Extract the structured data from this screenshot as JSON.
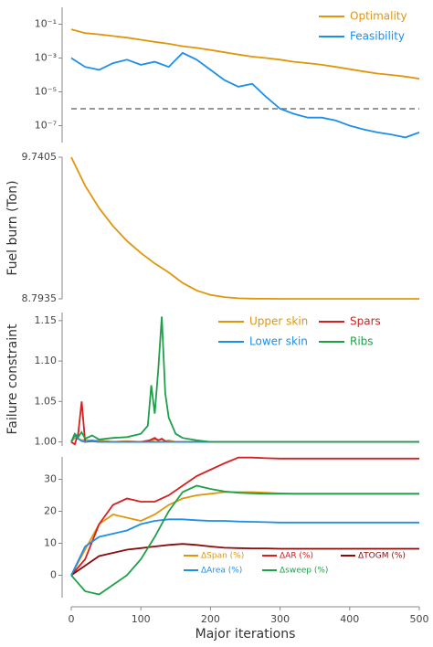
{
  "chart_data": [
    {
      "type": "line",
      "log_y": true,
      "legend": "upper right",
      "x": [
        0,
        20,
        40,
        60,
        80,
        100,
        120,
        140,
        160,
        180,
        200,
        220,
        240,
        260,
        280,
        300,
        320,
        340,
        360,
        380,
        400,
        420,
        440,
        460,
        480,
        500
      ],
      "xlim": [
        0,
        500
      ],
      "ylim": [
        1e-08,
        1
      ],
      "yticks": [
        {
          "value": 0.1,
          "label": "10⁻¹"
        },
        {
          "value": 0.001,
          "label": "10⁻³"
        },
        {
          "value": 1e-05,
          "label": "10⁻⁵"
        },
        {
          "value": 1e-07,
          "label": "10⁻⁷"
        }
      ],
      "hline": 1e-06,
      "series": [
        {
          "name": "Optimality",
          "color": "#e0960c",
          "values": [
            0.05,
            0.03,
            0.025,
            0.02,
            0.016,
            0.012,
            0.009,
            0.007,
            0.005,
            0.004,
            0.003,
            0.0022,
            0.0016,
            0.0012,
            0.001,
            0.0008,
            0.0006,
            0.0005,
            0.0004,
            0.0003,
            0.00022,
            0.00016,
            0.00012,
            0.0001,
            8e-05,
            6e-05
          ]
        },
        {
          "name": "Feasibility",
          "color": "#1e8fe6",
          "values": [
            0.001,
            0.0003,
            0.0002,
            0.0005,
            0.0008,
            0.0004,
            0.0006,
            0.0003,
            0.002,
            0.0008,
            0.0002,
            5e-05,
            2e-05,
            3e-05,
            5e-06,
            1e-06,
            5e-07,
            3e-07,
            3e-07,
            2e-07,
            1e-07,
            6e-08,
            4e-08,
            3e-08,
            2e-08,
            4e-08
          ]
        }
      ]
    },
    {
      "type": "line",
      "ylabel": "Fuel burn (Ton)",
      "x": [
        0,
        20,
        40,
        60,
        80,
        100,
        120,
        140,
        160,
        180,
        200,
        220,
        240,
        260,
        280,
        300,
        320,
        340,
        360,
        380,
        400,
        420,
        440,
        460,
        480,
        500
      ],
      "xlim": [
        0,
        500
      ],
      "ylim": [
        8.7935,
        9.7405
      ],
      "yticks": [
        9.7405,
        8.7935
      ],
      "series": [
        {
          "name": null,
          "color": "#e0960c",
          "values": [
            9.7405,
            9.55,
            9.4,
            9.28,
            9.18,
            9.1,
            9.03,
            8.97,
            8.9,
            8.85,
            8.82,
            8.805,
            8.797,
            8.795,
            8.794,
            8.7935,
            8.7935,
            8.7935,
            8.7935,
            8.7935,
            8.7935,
            8.7935,
            8.7935,
            8.7935,
            8.7935,
            8.7935
          ]
        }
      ]
    },
    {
      "type": "line",
      "ylabel": "Failure constraint",
      "legend": "upper right",
      "x": [
        0,
        5,
        10,
        15,
        20,
        30,
        40,
        60,
        80,
        100,
        110,
        115,
        120,
        125,
        130,
        135,
        140,
        150,
        160,
        180,
        200,
        250,
        300,
        400,
        500
      ],
      "xlim": [
        0,
        500
      ],
      "ylim": [
        0.995,
        1.16
      ],
      "yticks": [
        {
          "value": 1,
          "label": "1.00"
        },
        1.05,
        {
          "value": 1.1,
          "label": "1.10"
        },
        1.15
      ],
      "series": [
        {
          "name": "Upper skin",
          "color": "#e0960c",
          "values": [
            1,
            1.005,
            1.004,
            1.002,
            1.003,
            1.001,
            1.002,
            1,
            1.001,
            1,
            1.002,
            1.001,
            1.003,
            1.002,
            1.003,
            1.001,
            1.002,
            1,
            1,
            1,
            1,
            1,
            1,
            1,
            1
          ]
        },
        {
          "name": "Spars",
          "color": "#d42020",
          "values": [
            1,
            0.997,
            1.01,
            1.05,
            1.0,
            1.001,
            1,
            1,
            1,
            1,
            1.001,
            1.003,
            1.005,
            1.002,
            1.004,
            1.001,
            1,
            1,
            1,
            1,
            1,
            1,
            1,
            1,
            1
          ]
        },
        {
          "name": "Lower skin",
          "color": "#1e8fe6",
          "values": [
            1,
            1.008,
            1.004,
            1.001,
            1,
            1.002,
            1,
            1,
            1,
            1,
            1,
            1,
            1,
            1,
            1,
            1,
            1,
            1,
            1,
            1,
            1,
            1,
            1,
            1,
            1
          ]
        },
        {
          "name": "Ribs",
          "color": "#1ea04a",
          "values": [
            1,
            1.01,
            1.006,
            1.012,
            1.004,
            1.008,
            1.003,
            1.005,
            1.006,
            1.01,
            1.02,
            1.07,
            1.035,
            1.09,
            1.155,
            1.06,
            1.03,
            1.01,
            1.005,
            1.002,
            1,
            1,
            1,
            1,
            1
          ]
        }
      ]
    },
    {
      "type": "line",
      "legend": "lower right",
      "xlabel": "Major iterations",
      "x": [
        0,
        20,
        40,
        60,
        80,
        100,
        120,
        140,
        160,
        180,
        200,
        220,
        240,
        260,
        280,
        300,
        320,
        340,
        360,
        380,
        400,
        420,
        440,
        460,
        480,
        500
      ],
      "xlim": [
        0,
        500
      ],
      "ylim": [
        -7,
        37
      ],
      "yticks": [
        0,
        10,
        20,
        30
      ],
      "xticks": [
        0,
        100,
        200,
        300,
        400,
        500
      ],
      "series": [
        {
          "name": "ΔSpan (%)",
          "color": "#e0960c",
          "values": [
            0,
            8,
            16,
            19,
            18,
            17,
            19,
            22,
            24,
            25,
            25.5,
            26,
            26,
            26,
            25.8,
            25.6,
            25.5,
            25.5,
            25.5,
            25.5,
            25.5,
            25.5,
            25.5,
            25.5,
            25.5,
            25.5
          ]
        },
        {
          "name": "ΔAR (%)",
          "color": "#d42020",
          "values": [
            0,
            5,
            16,
            22,
            24,
            23,
            23,
            25,
            28,
            31,
            33,
            35,
            36.8,
            36.8,
            36.6,
            36.5,
            36.5,
            36.5,
            36.5,
            36.5,
            36.5,
            36.5,
            36.5,
            36.5,
            36.5,
            36.5
          ]
        },
        {
          "name": "ΔTOGM (%)",
          "color": "#8b0a0a",
          "values": [
            0,
            3,
            6,
            7,
            8,
            8.5,
            9,
            9.5,
            9.8,
            9.5,
            9,
            8.6,
            8.5,
            8.4,
            8.4,
            8.3,
            8.3,
            8.3,
            8.3,
            8.3,
            8.3,
            8.3,
            8.3,
            8.3,
            8.3,
            8.3
          ]
        },
        {
          "name": "ΔArea (%)",
          "color": "#1e8fe6",
          "values": [
            0,
            9,
            12,
            13,
            14,
            16,
            17,
            17.5,
            17.5,
            17.2,
            17,
            17,
            16.8,
            16.7,
            16.6,
            16.5,
            16.5,
            16.5,
            16.5,
            16.5,
            16.5,
            16.5,
            16.5,
            16.5,
            16.5,
            16.5
          ]
        },
        {
          "name": "Δsweep (%)",
          "color": "#1ea04a",
          "values": [
            0,
            -5,
            -6,
            -3,
            0,
            5,
            12,
            20,
            26,
            28,
            27,
            26.2,
            25.8,
            25.6,
            25.5,
            25.5,
            25.5,
            25.5,
            25.5,
            25.5,
            25.5,
            25.5,
            25.5,
            25.5,
            25.5,
            25.5
          ]
        }
      ]
    }
  ]
}
